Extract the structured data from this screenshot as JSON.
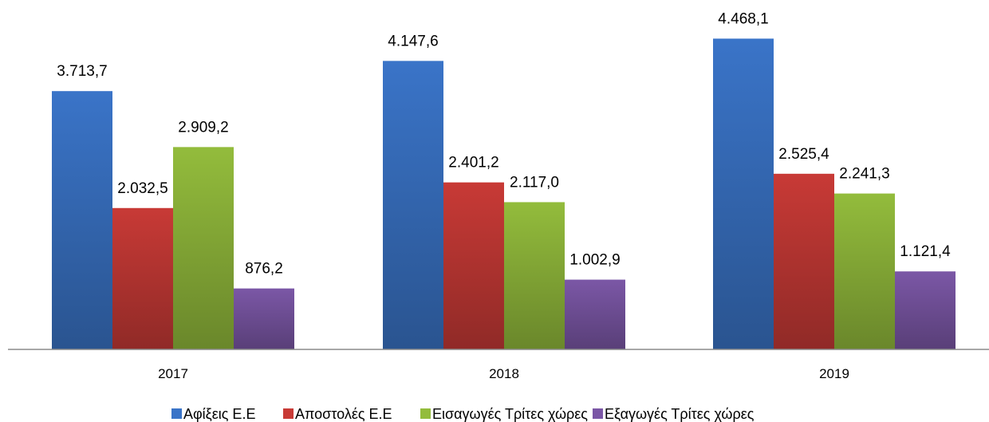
{
  "chart_data": {
    "type": "bar",
    "categories": [
      "2017",
      "2018",
      "2019"
    ],
    "series": [
      {
        "name": "Αφίξεις Ε.Ε",
        "values": [
          3713.7,
          4147.6,
          4468.1
        ],
        "labels": [
          "3.713,7",
          "4.147,6",
          "4.468,1"
        ],
        "color": "#3a74c8"
      },
      {
        "name": "Αποστολές  Ε.Ε",
        "values": [
          2032.5,
          2401.2,
          2525.4
        ],
        "labels": [
          "2.032,5",
          "2.401,2",
          "2.525,4"
        ],
        "color": "#c83a36"
      },
      {
        "name": "Εισαγωγές Τρίτες χώρες",
        "values": [
          2909.2,
          2117.0,
          2241.3
        ],
        "labels": [
          "2.909,2",
          "2.117,0",
          "2.241,3"
        ],
        "color": "#93bc3c"
      },
      {
        "name": "Εξαγωγές Τρίτες χώρες",
        "values": [
          876.2,
          1002.9,
          1121.4
        ],
        "labels": [
          "876,2",
          "1.002,9",
          "1.121,4"
        ],
        "color": "#7b57a6"
      }
    ],
    "title": "",
    "xlabel": "",
    "ylabel": "",
    "ylim": [
      0,
      5000
    ],
    "grid": false,
    "legend": "bottom"
  }
}
